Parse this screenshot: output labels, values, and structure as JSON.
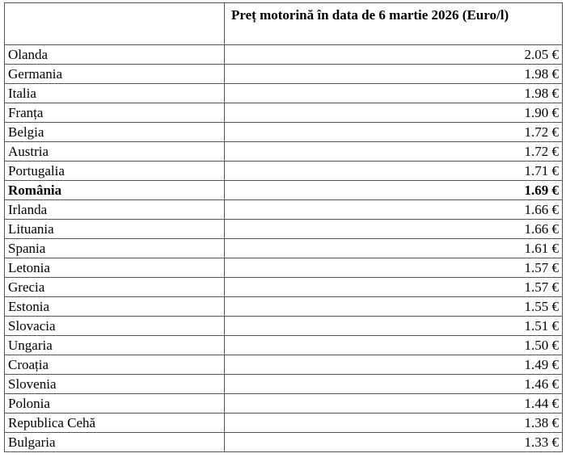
{
  "table": {
    "header": [
      "",
      "Preț motorină în data de 6 martie 2026 (Euro/l)"
    ],
    "rows": [
      {
        "country": "Olanda",
        "price": "2.05 €"
      },
      {
        "country": "Germania",
        "price": "1.98 €"
      },
      {
        "country": "Italia",
        "price": "1.98 €"
      },
      {
        "country": "Franța",
        "price": "1.90 €"
      },
      {
        "country": "Belgia",
        "price": "1.72 €"
      },
      {
        "country": "Austria",
        "price": "1.72 €"
      },
      {
        "country": "Portugalia",
        "price": "1.71 €"
      },
      {
        "country": "România",
        "price": "1.69 €",
        "bold": true
      },
      {
        "country": "Irlanda",
        "price": "1.66 €"
      },
      {
        "country": "Lituania",
        "price": "1.66 €"
      },
      {
        "country": "Spania",
        "price": "1.61 €"
      },
      {
        "country": "Letonia",
        "price": "1.57 €"
      },
      {
        "country": "Grecia",
        "price": "1.57 €"
      },
      {
        "country": "Estonia",
        "price": "1.55 €"
      },
      {
        "country": "Slovacia",
        "price": "1.51 €"
      },
      {
        "country": "Ungaria",
        "price": "1.50 €"
      },
      {
        "country": "Croația",
        "price": "1.49 €"
      },
      {
        "country": "Slovenia",
        "price": "1.46 €"
      },
      {
        "country": "Polonia",
        "price": "1.44 €"
      },
      {
        "country": "Republica Cehă",
        "price": "1.38 €"
      },
      {
        "country": "Bulgaria",
        "price": "1.33 €"
      }
    ]
  }
}
